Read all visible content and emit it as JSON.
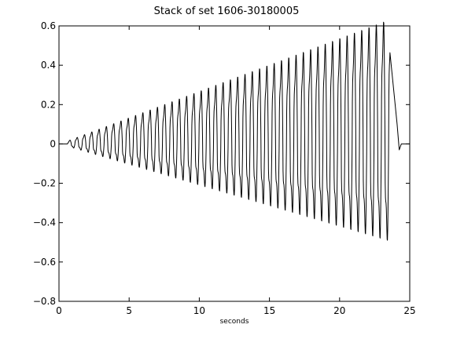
{
  "chart_data": {
    "type": "line",
    "title": "Stack of set 1606-30180005",
    "xlabel": "seconds",
    "ylabel": "",
    "xlim": [
      0,
      25
    ],
    "ylim": [
      -0.8,
      0.6
    ],
    "x_ticks": [
      0,
      5,
      10,
      15,
      20,
      25
    ],
    "y_ticks": [
      -0.8,
      -0.6,
      -0.4,
      -0.2,
      0,
      0.2,
      0.4,
      0.6
    ],
    "x_tick_labels": [
      "0",
      "5",
      "10",
      "15",
      "20",
      "25"
    ],
    "y_tick_labels": [
      "−0.8",
      "−0.6",
      "−0.4",
      "−0.2",
      "0",
      "0.2",
      "0.4",
      "0.6"
    ],
    "grid": false,
    "line_color": "#000000",
    "series": [
      {
        "signal": {
          "start_s": 0.0,
          "flat_until_s": 0.6,
          "onset_s": 0.75,
          "peak_s": 23.6,
          "end_s": 24.5,
          "cycle_s": 0.52,
          "max_positive": 0.57,
          "max_negative": -0.43,
          "start_amplitude": 0.03,
          "tail": [
            [
              24.1,
              0.1
            ],
            [
              24.25,
              -0.03
            ],
            [
              24.4,
              0.0
            ],
            [
              25.0,
              0.0
            ]
          ]
        }
      }
    ]
  }
}
